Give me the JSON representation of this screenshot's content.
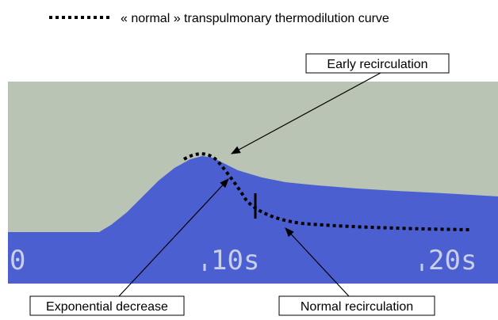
{
  "legend": {
    "label": "« normal » transpulmonary thermodilution curve"
  },
  "screen": {
    "time_labels": [
      "0",
      "10s",
      "20s"
    ]
  },
  "annotations": {
    "early": "Early recirculation",
    "exponential": "Exponential decrease",
    "normal": "Normal recirculation"
  }
}
